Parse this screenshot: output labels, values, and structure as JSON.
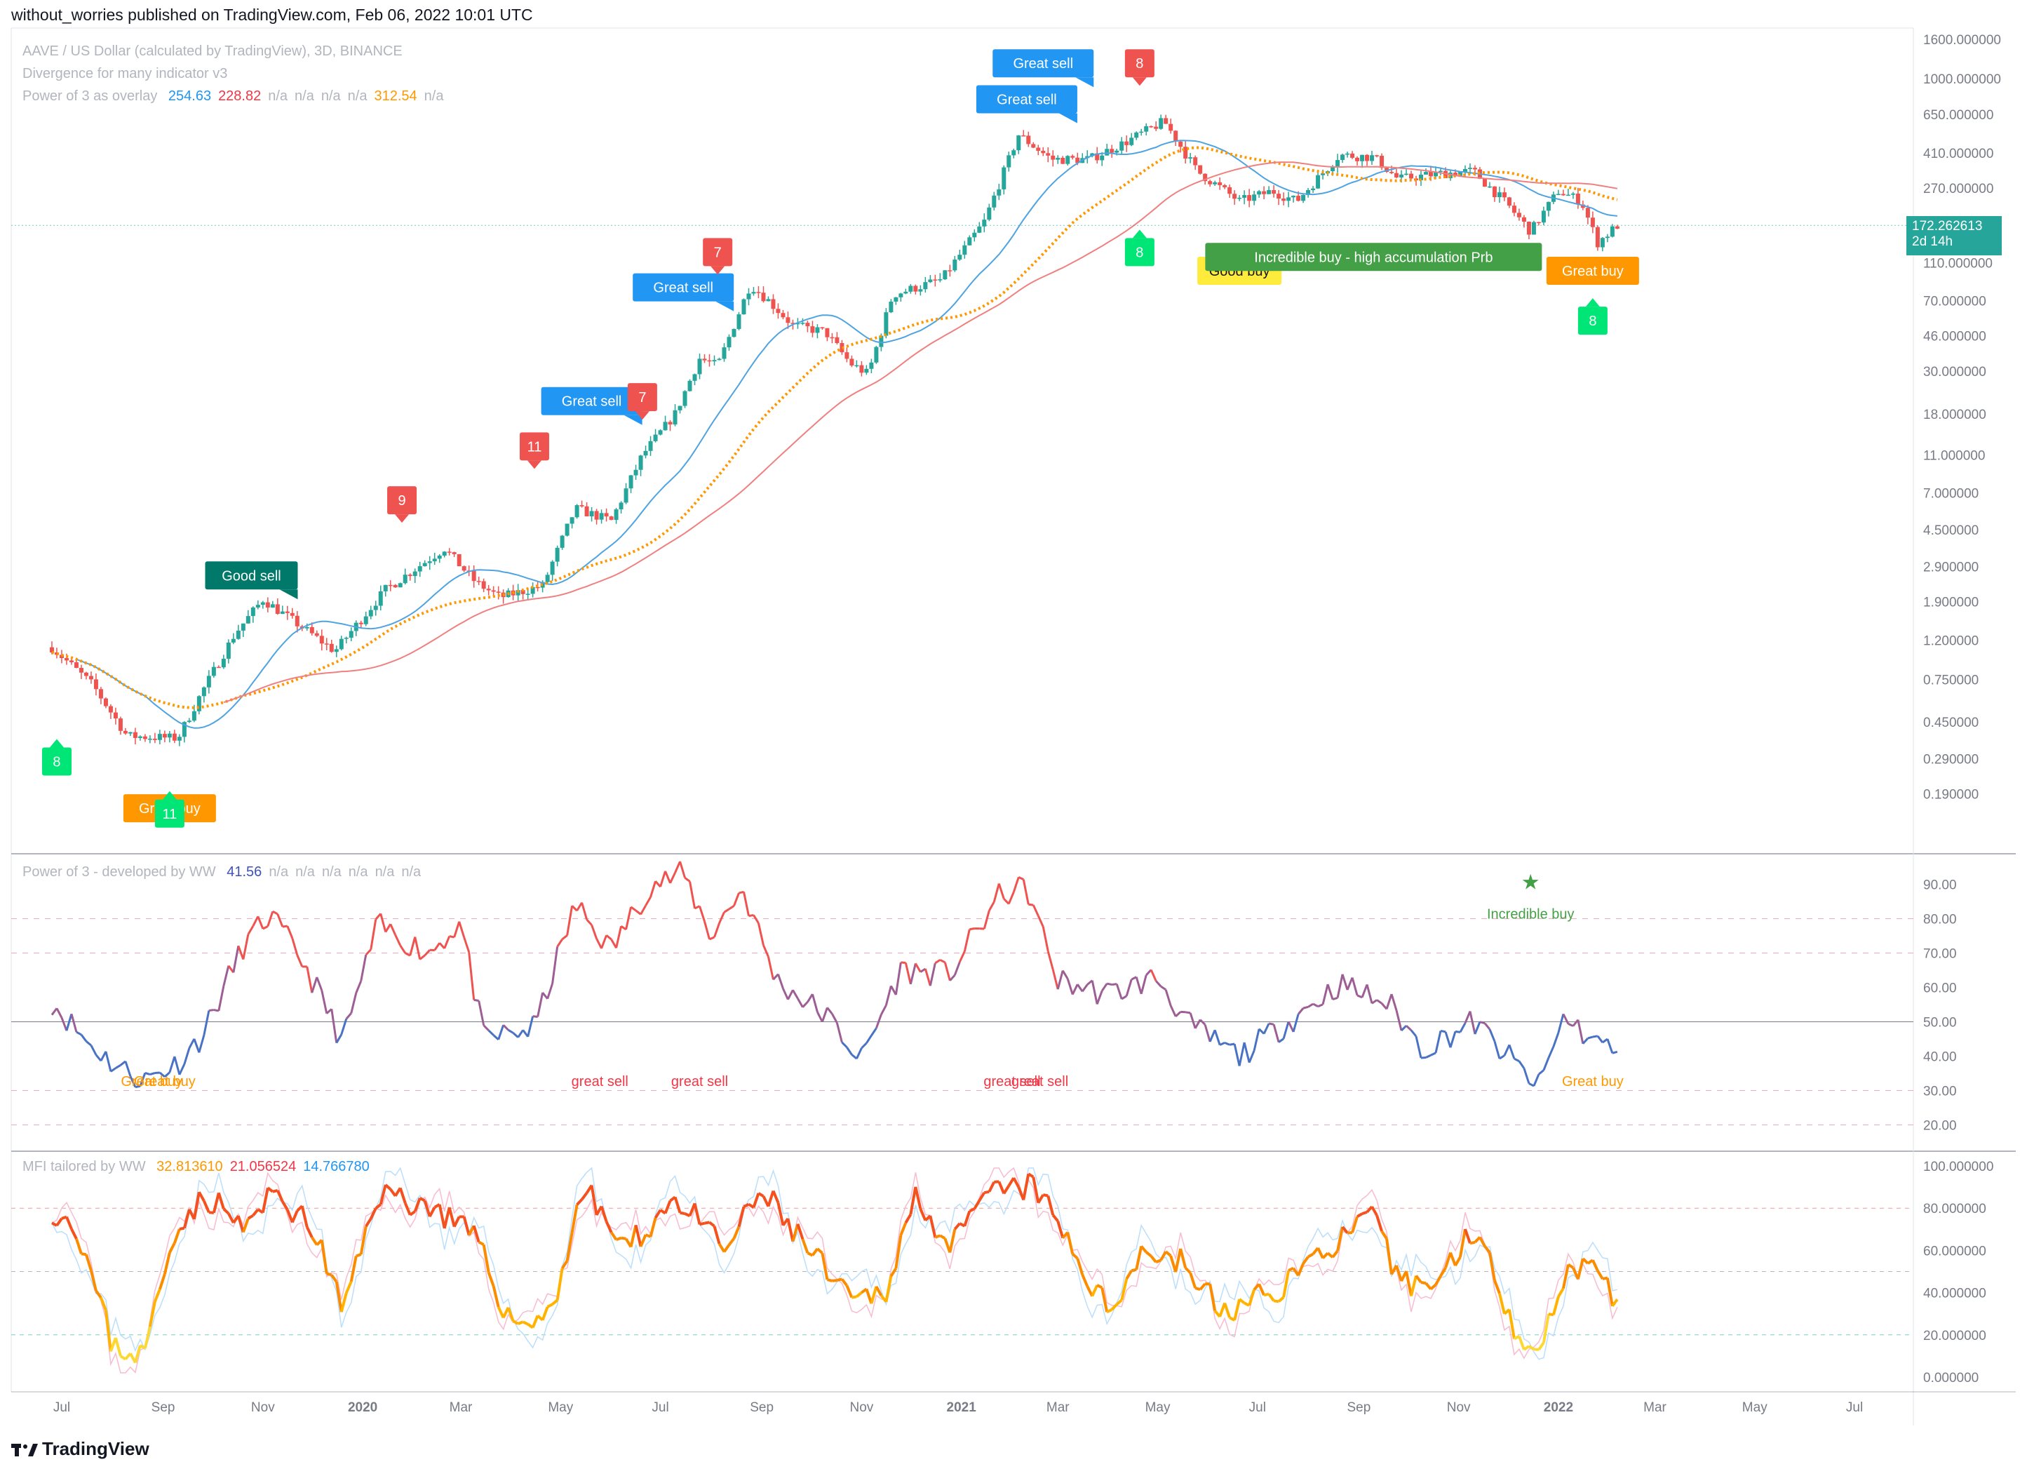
{
  "header": "without_worries published on TradingView.com, Feb 06, 2022 10:01 UTC",
  "main_legend": {
    "symbol": "AAVE / US Dollar (calculated by TradingView), 3D, BINANCE",
    "line2": "Divergence for many indicator v3",
    "p3_name": "Power of 3 as overlay",
    "p3_values": [
      {
        "text": "254.63",
        "color": "#2196f3"
      },
      {
        "text": "228.82",
        "color": "#f23645"
      },
      {
        "text": "n/a",
        "color": "#b2b5be"
      },
      {
        "text": "n/a",
        "color": "#b2b5be"
      },
      {
        "text": "n/a",
        "color": "#b2b5be"
      },
      {
        "text": "n/a",
        "color": "#b2b5be"
      },
      {
        "text": "312.54",
        "color": "#ff9800"
      },
      {
        "text": "n/a",
        "color": "#b2b5be"
      }
    ]
  },
  "p3_legend": {
    "name": "Power of 3 - developed by WW",
    "values": [
      {
        "text": "41.56",
        "color": "#3f51b5"
      },
      {
        "text": "n/a",
        "color": "#b2b5be"
      },
      {
        "text": "n/a",
        "color": "#b2b5be"
      },
      {
        "text": "n/a",
        "color": "#b2b5be"
      },
      {
        "text": "n/a",
        "color": "#b2b5be"
      },
      {
        "text": "n/a",
        "color": "#b2b5be"
      },
      {
        "text": "n/a",
        "color": "#b2b5be"
      }
    ]
  },
  "mfi_legend": {
    "name": "MFI tailored by WW",
    "values": [
      {
        "text": "32.813610",
        "color": "#ff9800"
      },
      {
        "text": "21.056524",
        "color": "#f23645"
      },
      {
        "text": "14.766780",
        "color": "#2196f3"
      }
    ]
  },
  "price_tag": {
    "price": "172.262613",
    "countdown": "2d 14h"
  },
  "footer": "TradingView",
  "colors": {
    "up": "#26a69a",
    "down": "#ef5350",
    "blue_ma": "#4fa3e0",
    "red_ma": "#f08080",
    "orange_ma": "#ff9800"
  },
  "chart_data": [
    {
      "type": "candlestick",
      "title": "AAVE / US Dollar (calculated by TradingView), 3D, BINANCE",
      "scale": "log",
      "ylim": [
        0.14,
        1600
      ],
      "y_ticks": [
        "1600.000000",
        "1000.000000",
        "650.000000",
        "410.000000",
        "270.000000",
        "170.000000",
        "110.000000",
        "70.000000",
        "46.000000",
        "30.000000",
        "18.000000",
        "11.000000",
        "7.000000",
        "4.500000",
        "2.900000",
        "1.900000",
        "1.200000",
        "0.750000",
        "0.450000",
        "0.290000",
        "0.190000"
      ],
      "x_ticks": [
        "Jul",
        "Sep",
        "Nov",
        "2020",
        "Mar",
        "May",
        "Jul",
        "Sep",
        "Nov",
        "2021",
        "Mar",
        "May",
        "Jul",
        "Sep",
        "Nov",
        "2022",
        "Mar",
        "May",
        "Jul"
      ],
      "price_anchors": [
        {
          "date": "2019-06-25",
          "price": 1.1
        },
        {
          "date": "2019-07-20",
          "price": 0.7
        },
        {
          "date": "2019-08-10",
          "price": 0.38
        },
        {
          "date": "2019-09-10",
          "price": 0.37
        },
        {
          "date": "2019-09-25",
          "price": 0.65
        },
        {
          "date": "2019-10-15",
          "price": 1.3
        },
        {
          "date": "2019-11-01",
          "price": 1.95
        },
        {
          "date": "2019-11-20",
          "price": 1.5
        },
        {
          "date": "2019-12-15",
          "price": 1.05
        },
        {
          "date": "2020-01-15",
          "price": 2.2
        },
        {
          "date": "2020-02-20",
          "price": 3.6
        },
        {
          "date": "2020-03-10",
          "price": 2.4
        },
        {
          "date": "2020-03-25",
          "price": 2.0
        },
        {
          "date": "2020-04-20",
          "price": 2.3
        },
        {
          "date": "2020-05-10",
          "price": 5.8
        },
        {
          "date": "2020-06-01",
          "price": 5.0
        },
        {
          "date": "2020-06-20",
          "price": 11.0
        },
        {
          "date": "2020-07-10",
          "price": 18.0
        },
        {
          "date": "2020-07-25",
          "price": 35.0
        },
        {
          "date": "2020-08-05",
          "price": 32.0
        },
        {
          "date": "2020-08-25",
          "price": 85.0
        },
        {
          "date": "2020-09-05",
          "price": 70.0
        },
        {
          "date": "2020-09-20",
          "price": 52.0
        },
        {
          "date": "2020-10-10",
          "price": 48.0
        },
        {
          "date": "2020-10-25",
          "price": 33.0
        },
        {
          "date": "2020-11-05",
          "price": 29.0
        },
        {
          "date": "2020-11-20",
          "price": 75.0
        },
        {
          "date": "2020-12-20",
          "price": 90.0
        },
        {
          "date": "2021-01-15",
          "price": 180.0
        },
        {
          "date": "2021-02-05",
          "price": 510.0
        },
        {
          "date": "2021-02-25",
          "price": 380.0
        },
        {
          "date": "2021-03-20",
          "price": 380.0
        },
        {
          "date": "2021-04-10",
          "price": 460.0
        },
        {
          "date": "2021-05-05",
          "price": 600.0
        },
        {
          "date": "2021-05-25",
          "price": 330.0
        },
        {
          "date": "2021-06-20",
          "price": 230.0
        },
        {
          "date": "2021-07-10",
          "price": 260.0
        },
        {
          "date": "2021-07-25",
          "price": 230.0
        },
        {
          "date": "2021-08-20",
          "price": 400.0
        },
        {
          "date": "2021-09-10",
          "price": 390.0
        },
        {
          "date": "2021-09-25",
          "price": 300.0
        },
        {
          "date": "2021-10-20",
          "price": 320.0
        },
        {
          "date": "2021-11-10",
          "price": 330.0
        },
        {
          "date": "2021-12-01",
          "price": 220.0
        },
        {
          "date": "2021-12-15",
          "price": 160.0
        },
        {
          "date": "2022-01-01",
          "price": 260.0
        },
        {
          "date": "2022-01-15",
          "price": 230.0
        },
        {
          "date": "2022-01-25",
          "price": 140.0
        },
        {
          "date": "2022-02-06",
          "price": 172.26
        }
      ],
      "signals": [
        {
          "label": "Good sell",
          "date": "2019-10-25",
          "price": 2.6,
          "color": "#00796b",
          "kind": "sell"
        },
        {
          "label": "9",
          "date": "2020-01-25",
          "price": 6.4,
          "color": "#ef5350",
          "kind": "count-down"
        },
        {
          "label": "11",
          "date": "2020-04-15",
          "price": 12.2,
          "color": "#ef5350",
          "kind": "count-down"
        },
        {
          "label": "Great sell",
          "date": "2020-05-20",
          "price": 21.0,
          "color": "#2196f3",
          "kind": "sell"
        },
        {
          "label": "7",
          "date": "2020-06-20",
          "price": 22.0,
          "color": "#ef5350",
          "kind": "count-down"
        },
        {
          "label": "Great sell",
          "date": "2020-07-15",
          "price": 82.0,
          "color": "#2196f3",
          "kind": "sell"
        },
        {
          "label": "7",
          "date": "2020-08-05",
          "price": 125.0,
          "color": "#ef5350",
          "kind": "count-down"
        },
        {
          "label": "Great sell",
          "date": "2021-02-10",
          "price": 780.0,
          "color": "#2196f3",
          "kind": "sell"
        },
        {
          "label": "Great sell",
          "date": "2021-02-20",
          "price": 1200.0,
          "color": "#2196f3",
          "kind": "sell"
        },
        {
          "label": "8",
          "date": "2021-04-20",
          "price": 1200.0,
          "color": "#ef5350",
          "kind": "count-down"
        },
        {
          "label": "8",
          "date": "2021-04-20",
          "price": 125.0,
          "color": "#00e676",
          "kind": "count-up"
        },
        {
          "label": "Good buy",
          "date": "2021-06-20",
          "price": 100.0,
          "color": "#ffeb3b",
          "kind": "buy"
        },
        {
          "label": "Incredible buy - high accumulation Prb",
          "date": "2021-09-10",
          "price": 118.0,
          "color": "#43a047",
          "kind": "buy"
        },
        {
          "label": "Great buy",
          "date": "2022-01-22",
          "price": 100.0,
          "color": "#ff9800",
          "kind": "buy"
        },
        {
          "label": "8",
          "date": "2022-01-22",
          "price": 55.0,
          "color": "#00e676",
          "kind": "count-up"
        },
        {
          "label": "8",
          "date": "2019-06-28",
          "price": 0.28,
          "color": "#00e676",
          "kind": "count-up"
        },
        {
          "label": "Great buy",
          "date": "2019-09-05",
          "price": 0.16,
          "color": "#ff9800",
          "kind": "buy"
        },
        {
          "label": "11",
          "date": "2019-09-05",
          "price": 0.15,
          "color": "#00e676",
          "kind": "count-up"
        }
      ]
    },
    {
      "type": "line",
      "title": "Power of 3 - developed by WW",
      "ylim": [
        15,
        95
      ],
      "y_ticks": [
        "90.00",
        "80.00",
        "70.00",
        "60.00",
        "50.00",
        "40.00",
        "30.00",
        "20.00"
      ],
      "anchors": [
        {
          "date": "2019-06-25",
          "value": 56
        },
        {
          "date": "2019-07-15",
          "value": 45
        },
        {
          "date": "2019-08-01",
          "value": 38
        },
        {
          "date": "2019-08-20",
          "value": 33
        },
        {
          "date": "2019-09-10",
          "value": 38
        },
        {
          "date": "2019-09-25",
          "value": 46
        },
        {
          "date": "2019-10-20",
          "value": 72
        },
        {
          "date": "2019-11-05",
          "value": 81
        },
        {
          "date": "2019-11-25",
          "value": 68
        },
        {
          "date": "2019-12-20",
          "value": 44
        },
        {
          "date": "2020-01-10",
          "value": 78
        },
        {
          "date": "2020-02-10",
          "value": 70
        },
        {
          "date": "2020-03-01",
          "value": 79
        },
        {
          "date": "2020-03-15",
          "value": 45
        },
        {
          "date": "2020-04-15",
          "value": 48
        },
        {
          "date": "2020-05-10",
          "value": 84
        },
        {
          "date": "2020-06-01",
          "value": 71
        },
        {
          "date": "2020-06-25",
          "value": 90
        },
        {
          "date": "2020-07-15",
          "value": 93
        },
        {
          "date": "2020-08-01",
          "value": 75
        },
        {
          "date": "2020-08-20",
          "value": 89
        },
        {
          "date": "2020-09-10",
          "value": 62
        },
        {
          "date": "2020-10-10",
          "value": 52
        },
        {
          "date": "2020-11-01",
          "value": 39
        },
        {
          "date": "2020-11-25",
          "value": 65
        },
        {
          "date": "2020-12-25",
          "value": 64
        },
        {
          "date": "2021-01-25",
          "value": 87
        },
        {
          "date": "2021-02-10",
          "value": 89
        },
        {
          "date": "2021-03-01",
          "value": 62
        },
        {
          "date": "2021-04-01",
          "value": 58
        },
        {
          "date": "2021-05-01",
          "value": 63
        },
        {
          "date": "2021-05-20",
          "value": 49
        },
        {
          "date": "2021-06-20",
          "value": 40
        },
        {
          "date": "2021-07-20",
          "value": 50
        },
        {
          "date": "2021-08-20",
          "value": 61
        },
        {
          "date": "2021-09-20",
          "value": 55
        },
        {
          "date": "2021-10-10",
          "value": 42
        },
        {
          "date": "2021-11-10",
          "value": 50
        },
        {
          "date": "2021-12-05",
          "value": 38
        },
        {
          "date": "2021-12-20",
          "value": 31
        },
        {
          "date": "2022-01-05",
          "value": 52
        },
        {
          "date": "2022-01-20",
          "value": 45
        },
        {
          "date": "2022-02-06",
          "value": 41.56
        }
      ],
      "annotations": [
        {
          "label": "Great buy",
          "date": "2019-08-25",
          "value": 33,
          "color": "#ff9800"
        },
        {
          "label": "Great buy",
          "date": "2019-09-02",
          "value": 33,
          "color": "#ff9800"
        },
        {
          "label": "great sell",
          "date": "2020-05-25",
          "value": 33,
          "color": "#f23645"
        },
        {
          "label": "great sell",
          "date": "2020-07-25",
          "value": 33,
          "color": "#f23645"
        },
        {
          "label": "great sell",
          "date": "2021-02-01",
          "value": 33,
          "color": "#f23645"
        },
        {
          "label": "great sell",
          "date": "2021-02-18",
          "value": 33,
          "color": "#f23645"
        },
        {
          "label": "Great buy",
          "date": "2022-01-22",
          "value": 33,
          "color": "#ff9800"
        },
        {
          "label": "Incredible buy",
          "date": "2021-12-15",
          "value": 80,
          "color": "#43a047"
        }
      ]
    },
    {
      "type": "line",
      "title": "MFI tailored by WW",
      "ylim": [
        -5,
        102
      ],
      "y_ticks": [
        "100.000000",
        "80.000000",
        "60.000000",
        "40.000000",
        "20.000000",
        "0.000000"
      ],
      "anchors": [
        {
          "date": "2019-06-25",
          "value": 80
        },
        {
          "date": "2019-07-10",
          "value": 72
        },
        {
          "date": "2019-08-01",
          "value": 15
        },
        {
          "date": "2019-08-20",
          "value": 10
        },
        {
          "date": "2019-09-10",
          "value": 75
        },
        {
          "date": "2019-09-30",
          "value": 85
        },
        {
          "date": "2019-10-20",
          "value": 70
        },
        {
          "date": "2019-11-10",
          "value": 88
        },
        {
          "date": "2019-12-05",
          "value": 65
        },
        {
          "date": "2019-12-20",
          "value": 30
        },
        {
          "date": "2020-01-10",
          "value": 88
        },
        {
          "date": "2020-02-15",
          "value": 80
        },
        {
          "date": "2020-03-10",
          "value": 65
        },
        {
          "date": "2020-04-01",
          "value": 25
        },
        {
          "date": "2020-04-25",
          "value": 30
        },
        {
          "date": "2020-05-15",
          "value": 90
        },
        {
          "date": "2020-06-10",
          "value": 60
        },
        {
          "date": "2020-07-10",
          "value": 85
        },
        {
          "date": "2020-08-10",
          "value": 60
        },
        {
          "date": "2020-09-01",
          "value": 88
        },
        {
          "date": "2020-09-25",
          "value": 65
        },
        {
          "date": "2020-10-25",
          "value": 35
        },
        {
          "date": "2020-11-15",
          "value": 40
        },
        {
          "date": "2020-12-05",
          "value": 88
        },
        {
          "date": "2020-12-25",
          "value": 60
        },
        {
          "date": "2021-01-20",
          "value": 88
        },
        {
          "date": "2021-02-15",
          "value": 90
        },
        {
          "date": "2021-03-10",
          "value": 60
        },
        {
          "date": "2021-04-01",
          "value": 30
        },
        {
          "date": "2021-04-20",
          "value": 60
        },
        {
          "date": "2021-05-15",
          "value": 55
        },
        {
          "date": "2021-06-10",
          "value": 30
        },
        {
          "date": "2021-07-10",
          "value": 40
        },
        {
          "date": "2021-08-10",
          "value": 60
        },
        {
          "date": "2021-09-10",
          "value": 75
        },
        {
          "date": "2021-09-25",
          "value": 45
        },
        {
          "date": "2021-10-20",
          "value": 45
        },
        {
          "date": "2021-11-10",
          "value": 72
        },
        {
          "date": "2021-12-05",
          "value": 25
        },
        {
          "date": "2021-12-20",
          "value": 12
        },
        {
          "date": "2022-01-05",
          "value": 50
        },
        {
          "date": "2022-01-25",
          "value": 55
        },
        {
          "date": "2022-02-06",
          "value": 32.81
        }
      ]
    }
  ]
}
